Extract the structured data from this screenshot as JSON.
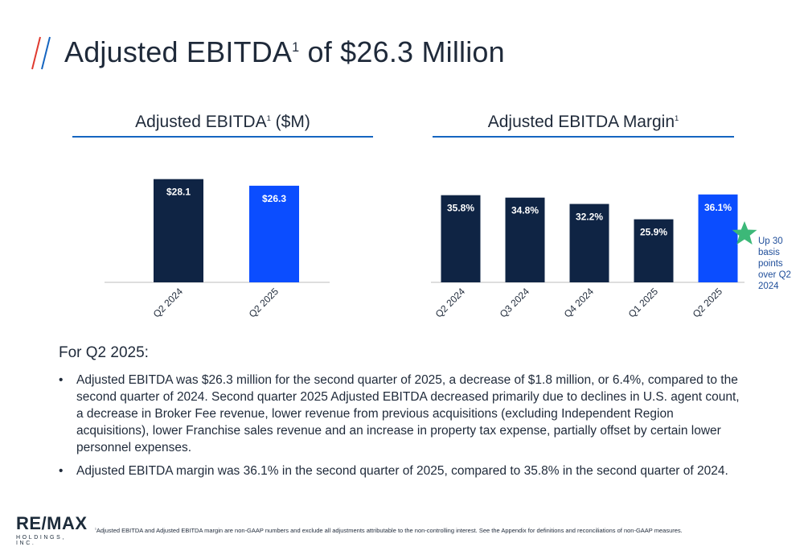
{
  "page": {
    "title_main": "Adjusted EBITDA",
    "title_sup": "1",
    "title_rest": " of $26.3 Million"
  },
  "colors": {
    "navy": "#0f2444",
    "blue": "#0b4dff",
    "accent_red": "#e03a2f",
    "accent_blue": "#1565c0",
    "star": "#3cb878"
  },
  "chart_data": [
    {
      "type": "bar",
      "title": "Adjusted EBITDA",
      "title_sup": "1",
      "title_suffix": " ($M)",
      "categories": [
        "Q2 2024",
        "Q2 2025"
      ],
      "values": [
        28.1,
        26.3
      ],
      "labels": [
        "$28.1",
        "$26.3"
      ],
      "bar_colors": [
        "#0f2444",
        "#0b4dff"
      ],
      "ylim": [
        0,
        30
      ]
    },
    {
      "type": "bar",
      "title": "Adjusted EBITDA Margin",
      "title_sup": "1",
      "categories": [
        "Q2 2024",
        "Q3 2024",
        "Q4 2024",
        "Q1 2025",
        "Q2 2025"
      ],
      "values": [
        35.8,
        34.8,
        32.2,
        25.9,
        36.1
      ],
      "labels": [
        "35.8%",
        "34.8%",
        "32.2%",
        "25.9%",
        "36.1%"
      ],
      "bar_colors": [
        "#0f2444",
        "#0f2444",
        "#0f2444",
        "#0f2444",
        "#0b4dff"
      ],
      "ylim": [
        0,
        38
      ],
      "annotation": "Up 30 basis points over Q2 2024"
    }
  ],
  "body": {
    "heading": "For Q2 2025:",
    "bullet_char": "•",
    "bullets": [
      "Adjusted EBITDA was $26.3 million for the second quarter of 2025, a decrease of $1.8 million, or 6.4%, compared to the second quarter of 2024. Second quarter 2025 Adjusted EBITDA decreased primarily due to declines in U.S. agent count, a decrease in Broker Fee revenue, lower revenue from previous acquisitions (excluding Independent Region acquisitions), lower Franchise sales revenue and an increase in property tax expense, partially offset by certain lower personnel expenses.",
      "Adjusted EBITDA margin was 36.1% in the second quarter of 2025, compared to 35.8% in the second quarter of 2024."
    ]
  },
  "logo": {
    "main": "RE/MAX",
    "sub": "HOLDINGS, INC."
  },
  "footnote": {
    "mark": "1",
    "text": "Adjusted EBITDA and Adjusted EBITDA margin are non-GAAP numbers and exclude all adjustments attributable to the non-controlling interest. See the Appendix for definitions and reconciliations of non-GAAP measures."
  }
}
